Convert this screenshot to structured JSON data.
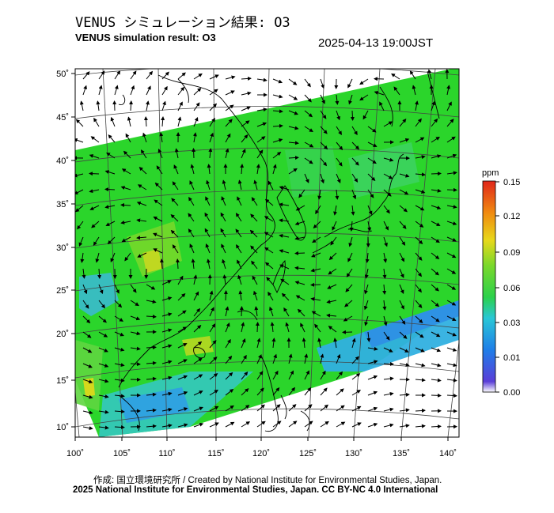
{
  "header": {
    "title_jp": "VENUS シミュレーション結果: O3",
    "title_en": "VENUS simulation result: O3",
    "timestamp": "2025-04-13 19:00JST"
  },
  "map": {
    "lon_ticks": [
      "100˚",
      "105˚",
      "110˚",
      "115˚",
      "120˚",
      "125˚",
      "130˚",
      "135˚",
      "140˚"
    ],
    "lat_ticks": [
      "50˚",
      "45˚",
      "40˚",
      "35˚",
      "30˚",
      "25˚",
      "20˚",
      "15˚",
      "10˚"
    ],
    "field_colors": {
      "high": "#e0d800",
      "mid": "#2bd52b",
      "low_mid": "#36c9a8",
      "low": "#2f9fe6",
      "very_low": "#2a6fe0"
    },
    "wind_arrows_icon": "arrow-icon"
  },
  "colorbar": {
    "unit": "ppm",
    "ticks": [
      "0.15",
      "0.12",
      "0.09",
      "0.06",
      "0.03",
      "0.01",
      "0.00"
    ],
    "colors": [
      "#ffffff",
      "#4a3cd6",
      "#1f7ee8",
      "#29c7d6",
      "#2bd14a",
      "#7ad82b",
      "#e8d81a",
      "#f08a10",
      "#e0261a"
    ]
  },
  "footer": {
    "credit_jp": "作成: 国立環境研究所 / Created by National Institute for Environmental Studies, Japan.",
    "license": "2025 National Institute for Environmental Studies, Japan. CC BY-NC 4.0 International"
  }
}
